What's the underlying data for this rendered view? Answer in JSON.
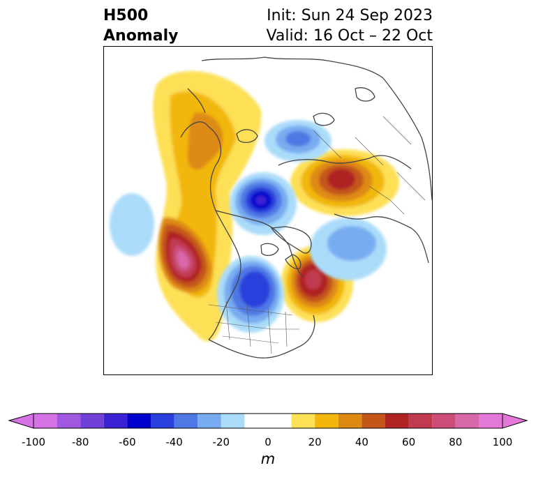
{
  "title": {
    "left_line1": "H500",
    "left_line2": "Anomaly",
    "init": "Init: Sun 24 Sep 2023",
    "valid": "Valid: 16 Oct – 22 Oct"
  },
  "colorbar": {
    "unit": "m",
    "tick_labels": [
      "-100",
      "-80",
      "-60",
      "-40",
      "-20",
      "0",
      "20",
      "40",
      "60",
      "80",
      "100"
    ],
    "levels": [
      -100,
      -90,
      -80,
      -70,
      -60,
      -50,
      -40,
      -30,
      -20,
      -10,
      10,
      20,
      30,
      40,
      50,
      60,
      70,
      80,
      90,
      100
    ],
    "colors": [
      "#d672e6",
      "#a058e0",
      "#7040d8",
      "#3a22d4",
      "#0000cc",
      "#2a40dc",
      "#5078e4",
      "#78acf0",
      "#aadcfa",
      "#ffffff",
      "#fde056",
      "#f2b70a",
      "#de8a12",
      "#c4561a",
      "#b02424",
      "#c03a50",
      "#cc4e78",
      "#d868a8",
      "#e478d8"
    ],
    "extend_min_color": "#d672e6",
    "extend_max_color": "#e478d8"
  },
  "map": {
    "projection": "north-polar-stereographic",
    "anomaly_features": [
      {
        "label": "ridge-west-north-america",
        "sign": "positive",
        "peak_m": 95
      },
      {
        "label": "ridge-alaska-yukon",
        "sign": "positive",
        "peak_m": 30
      },
      {
        "label": "ridge-western-siberia",
        "sign": "positive",
        "peak_m": 65
      },
      {
        "label": "ridge-scandinavia-greenland-sea",
        "sign": "positive",
        "peak_m": 65
      },
      {
        "label": "trough-arctic-ocean",
        "sign": "negative",
        "peak_m": -65
      },
      {
        "label": "trough-central-canada",
        "sign": "negative",
        "peak_m": -55
      },
      {
        "label": "trough-north-atlantic",
        "sign": "negative",
        "peak_m": -35
      },
      {
        "label": "trough-siberia-north",
        "sign": "negative",
        "peak_m": -35
      },
      {
        "label": "trough-pacific",
        "sign": "negative",
        "peak_m": -20
      }
    ]
  }
}
